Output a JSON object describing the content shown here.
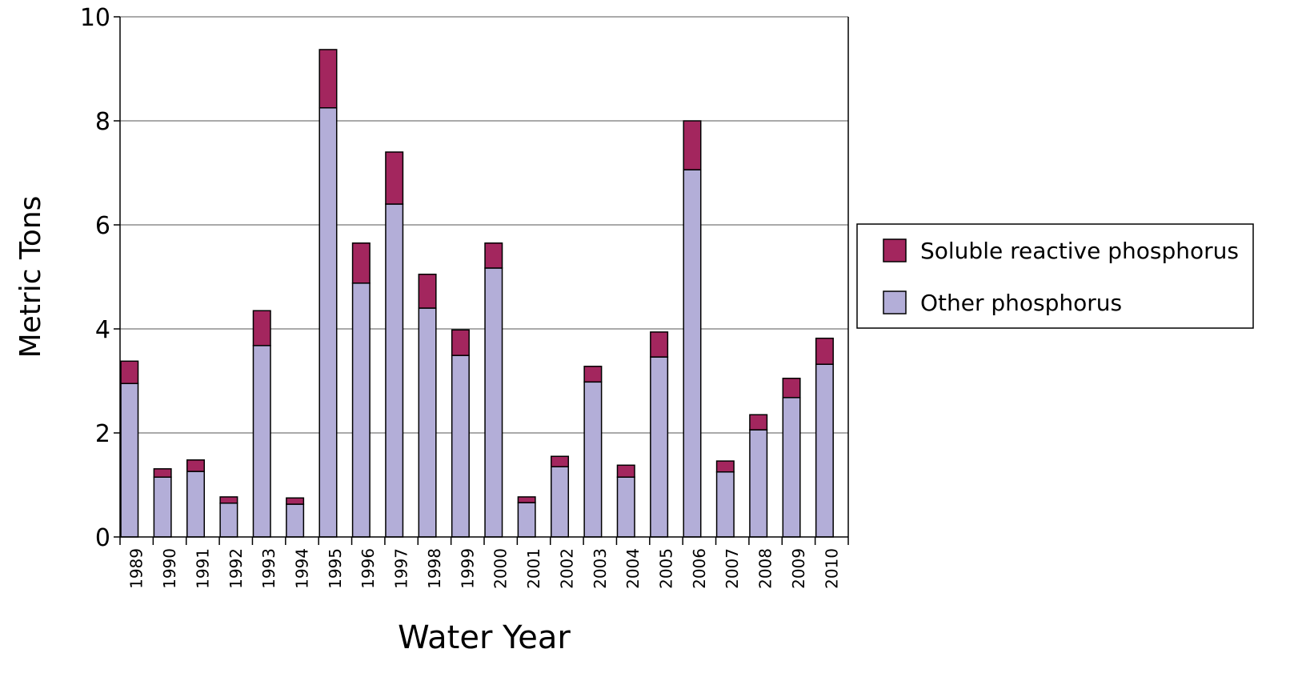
{
  "chart_data": {
    "type": "stacked_bar",
    "x_label": "Water Year",
    "y_label": "Metric Tons",
    "categories": [
      "1989",
      "1990",
      "1991",
      "1992",
      "1993",
      "1994",
      "1995",
      "1996",
      "1997",
      "1998",
      "1999",
      "2000",
      "2001",
      "2002",
      "2003",
      "2004",
      "2005",
      "2006",
      "2007",
      "2008",
      "2009",
      "2010"
    ],
    "series": [
      {
        "name": "Other phosphorus",
        "color": "#b3aed8",
        "values": [
          2.95,
          1.15,
          1.26,
          0.65,
          3.68,
          0.63,
          8.25,
          4.88,
          6.4,
          4.4,
          3.49,
          5.17,
          0.66,
          1.35,
          2.98,
          1.15,
          3.46,
          7.06,
          1.25,
          2.06,
          2.68,
          3.32
        ]
      },
      {
        "name": "Soluble reactive phosphorus",
        "color": "#a3265e",
        "values": [
          0.43,
          0.16,
          0.22,
          0.12,
          0.67,
          0.12,
          1.12,
          0.77,
          1.0,
          0.65,
          0.49,
          0.48,
          0.11,
          0.2,
          0.3,
          0.23,
          0.48,
          0.94,
          0.21,
          0.29,
          0.37,
          0.5
        ]
      }
    ],
    "ylim": [
      0,
      10
    ],
    "yticks": [
      0,
      2,
      4,
      6,
      8,
      10
    ],
    "grid": true,
    "legend": "right"
  }
}
